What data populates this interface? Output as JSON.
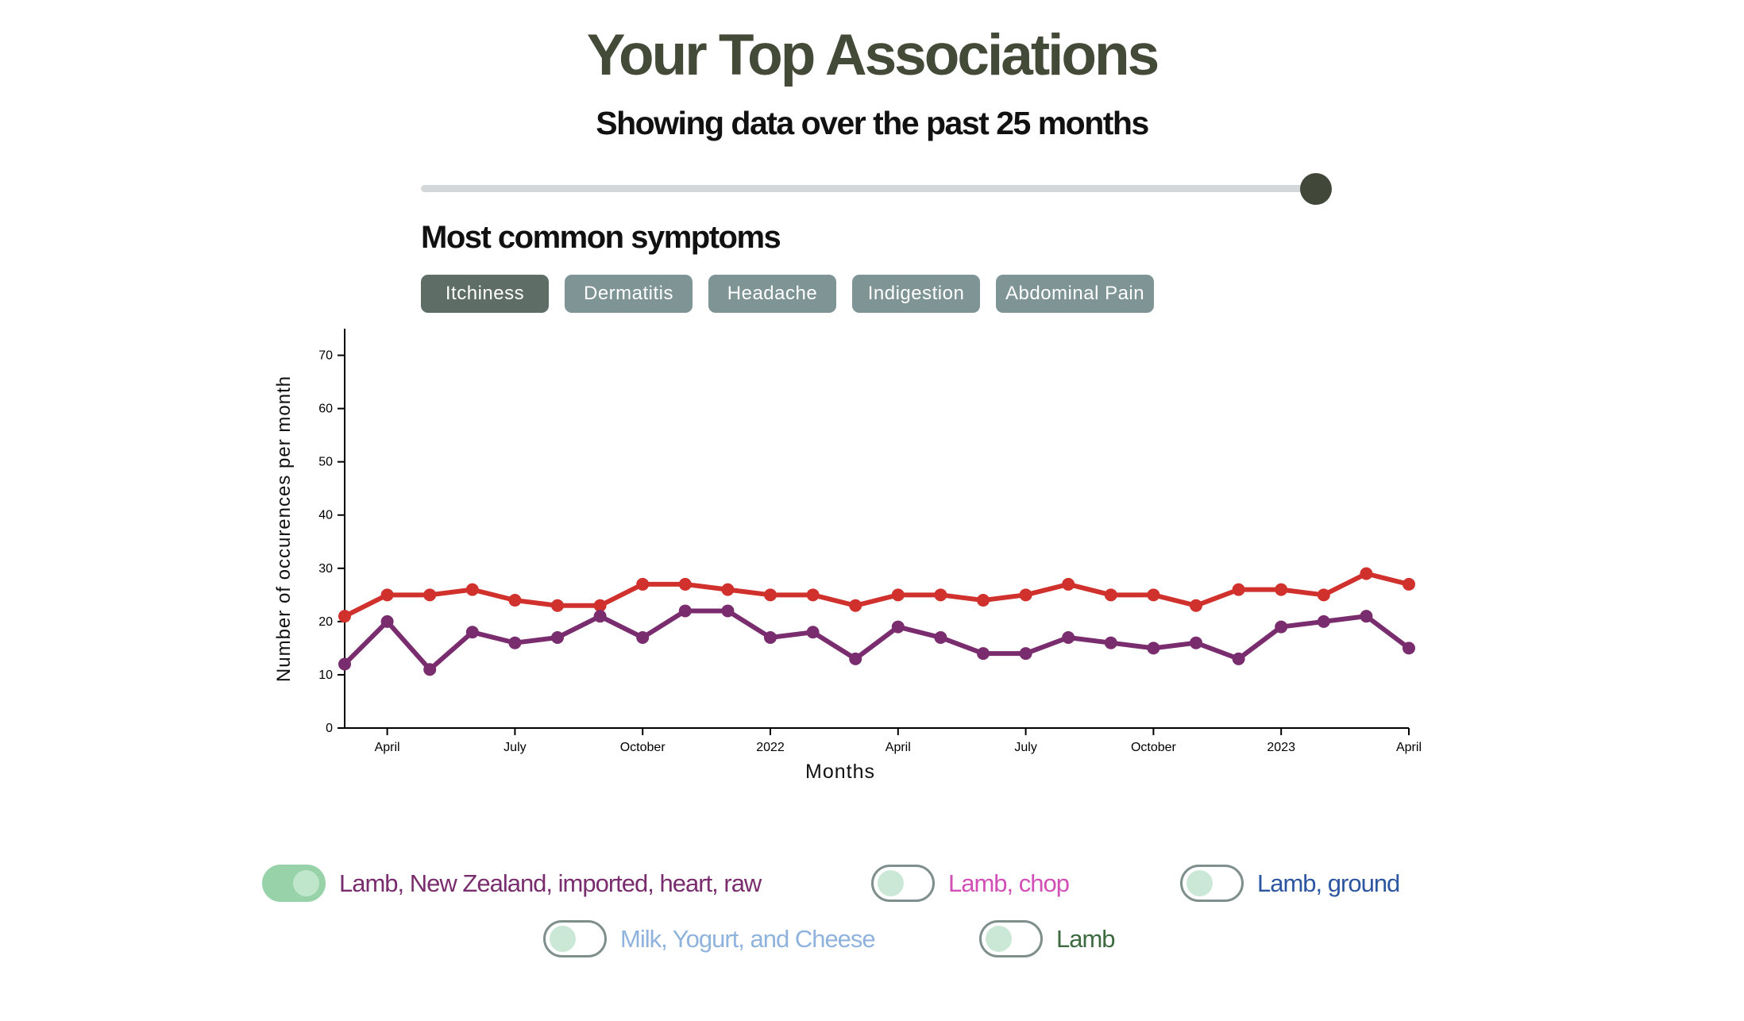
{
  "header": {
    "title": "Your Top Associations",
    "subtitle": "Showing data over the past 25 months"
  },
  "range_slider": {
    "value_months": 25
  },
  "symptoms": {
    "title": "Most common symptoms",
    "items": [
      {
        "label": "Itchiness",
        "active": true
      },
      {
        "label": "Dermatitis",
        "active": false
      },
      {
        "label": "Headache",
        "active": false
      },
      {
        "label": "Indigestion",
        "active": false
      },
      {
        "label": "Abdominal Pain",
        "active": false
      }
    ]
  },
  "chart_data": {
    "type": "line",
    "xlabel": "Months",
    "ylabel": "Number of occurences per month",
    "x": [
      "2021-03",
      "2021-04",
      "2021-05",
      "2021-06",
      "2021-07",
      "2021-08",
      "2021-09",
      "2021-10",
      "2021-11",
      "2021-12",
      "2022-01",
      "2022-02",
      "2022-03",
      "2022-04",
      "2022-05",
      "2022-06",
      "2022-07",
      "2022-08",
      "2022-09",
      "2022-10",
      "2022-11",
      "2022-12",
      "2023-01",
      "2023-02",
      "2023-03",
      "2023-04"
    ],
    "x_ticks": [
      {
        "date": "2021-04",
        "label": "April"
      },
      {
        "date": "2021-07",
        "label": "July"
      },
      {
        "date": "2021-10",
        "label": "October"
      },
      {
        "date": "2022-01",
        "label": "2022"
      },
      {
        "date": "2022-04",
        "label": "April"
      },
      {
        "date": "2022-07",
        "label": "July"
      },
      {
        "date": "2022-10",
        "label": "October"
      },
      {
        "date": "2023-01",
        "label": "2023"
      },
      {
        "date": "2023-04",
        "label": "April"
      }
    ],
    "ylim": [
      0,
      75
    ],
    "y_ticks": [
      0,
      10,
      20,
      30,
      40,
      50,
      60,
      70
    ],
    "grid": false,
    "series": [
      {
        "color": "#d0312d",
        "values": [
          21,
          25,
          25,
          26,
          24,
          23,
          23,
          27,
          27,
          26,
          25,
          25,
          23,
          25,
          25,
          24,
          25,
          27,
          25,
          25,
          23,
          26,
          26,
          25,
          29,
          27
        ]
      },
      {
        "color": "#7a2d6e",
        "values": [
          12,
          20,
          11,
          18,
          16,
          17,
          21,
          17,
          22,
          22,
          17,
          18,
          13,
          19,
          17,
          14,
          14,
          17,
          16,
          15,
          16,
          13,
          19,
          20,
          21,
          15
        ]
      }
    ]
  },
  "foods": [
    {
      "label": "Lamb, New Zealand, imported, heart, raw",
      "on": true,
      "color": "#7a2d6e"
    },
    {
      "label": "Lamb, chop",
      "on": false,
      "color": "#d14fb6"
    },
    {
      "label": "Lamb, ground",
      "on": false,
      "color": "#2c56a0"
    },
    {
      "label": "Milk, Yogurt, and Cheese",
      "on": false,
      "color": "#8fb3dd"
    },
    {
      "label": "Lamb",
      "on": false,
      "color": "#3d6b3f"
    }
  ]
}
